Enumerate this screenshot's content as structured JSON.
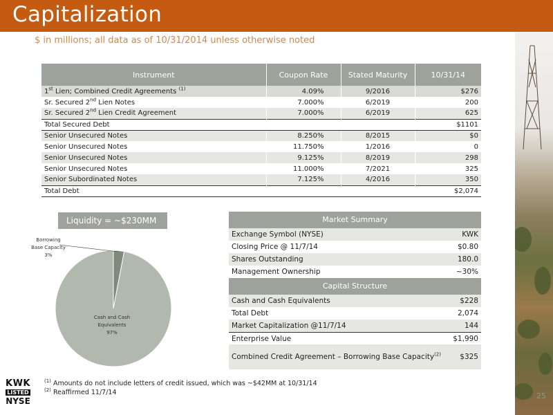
{
  "header": {
    "title": "Capitalization",
    "subtitle": "$ in millions; all data as of 10/31/2014 unless otherwise noted"
  },
  "debt_table": {
    "columns": [
      "Instrument",
      "Coupon Rate",
      "Stated Maturity",
      "10/31/14"
    ],
    "rows": [
      {
        "instrument": "1st Lien; Combined Credit Agreements",
        "footnote": "(1)",
        "rate": "4.09%",
        "maturity": "9/2016",
        "amount": "$276"
      },
      {
        "instrument": "Sr. Secured 2nd Lien Notes",
        "rate": "7.000%",
        "maturity": "6/2019",
        "amount": "200"
      },
      {
        "instrument": "Sr. Secured 2nd Lien Credit Agreement",
        "rate": "7.000%",
        "maturity": "6/2019",
        "amount": "625"
      },
      {
        "instrument": "Total Secured Debt",
        "rate": "",
        "maturity": "",
        "amount": "$1101"
      },
      {
        "instrument": "Senior Unsecured Notes",
        "rate": "8.250%",
        "maturity": "8/2015",
        "amount": "$0"
      },
      {
        "instrument": "Senior Unsecured Notes",
        "rate": "11.750%",
        "maturity": "1/2016",
        "amount": "0"
      },
      {
        "instrument": "Senior Unsecured Notes",
        "rate": "9.125%",
        "maturity": "8/2019",
        "amount": "298"
      },
      {
        "instrument": "Senior Unsecured Notes",
        "rate": "11.000%",
        "maturity": "7/2021",
        "amount": "325"
      },
      {
        "instrument": "Senior Subordinated Notes",
        "rate": "7.125%",
        "maturity": "4/2016",
        "amount": "350"
      },
      {
        "instrument": "Total Debt",
        "rate": "",
        "maturity": "",
        "amount": "$2,074"
      }
    ]
  },
  "liquidity": "Liquidity = ~$230MM",
  "chart_data": {
    "type": "pie",
    "categories": [
      "Borrowing Base Capacity",
      "Cash and Cash Equivalents"
    ],
    "values": [
      3,
      97
    ],
    "labels": [
      "3%",
      "97%"
    ],
    "colors": [
      "#7f8a7c",
      "#b1b8ae"
    ],
    "legend": "none"
  },
  "market_summary": {
    "header": "Market Summary",
    "rows": [
      {
        "label": "Exchange Symbol (NYSE)",
        "value": "KWK"
      },
      {
        "label": "Closing Price @ 11/7/14",
        "value": "$0.80"
      },
      {
        "label": "Shares Outstanding",
        "value": "180.0"
      },
      {
        "label": "Management Ownership",
        "value": "~30%"
      }
    ]
  },
  "capital_structure": {
    "header": "Capital Structure",
    "rows": [
      {
        "label": "Cash and Cash Equivalents",
        "value": "$228"
      },
      {
        "label": "Total Debt",
        "value": "2,074"
      },
      {
        "label": "Market Capitalization @11/7/14",
        "value": "144"
      },
      {
        "label": "Enterprise Value",
        "value": "$1,990"
      },
      {
        "label": "Combined Credit Agreement – Borrowing Base Capacity",
        "footnote": "(2)",
        "value": "$325"
      }
    ]
  },
  "footnotes": [
    {
      "marker": "(1)",
      "text": "Amounts do not include letters of credit issued, which was ~$42MM at 10/31/14"
    },
    {
      "marker": "(2)",
      "text": "Reaffirmed 11/7/14"
    }
  ],
  "logo": {
    "line1": "KWK",
    "line2": "LISTED",
    "line3": "NYSE"
  },
  "page_number": "25",
  "colors": {
    "title_bar": "#c55a11",
    "header_fill": "#9da39a",
    "subtitle": "#c98a52"
  }
}
